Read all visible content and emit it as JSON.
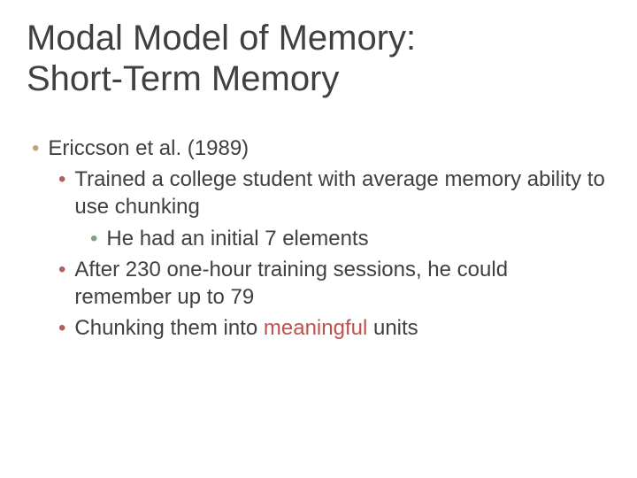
{
  "slide": {
    "background_color": "#ffffff",
    "title": {
      "line1": "Modal Model of Memory:",
      "line2": "Short-Term Memory",
      "color": "#404040",
      "fontsize": 40
    },
    "body": {
      "fontsize": 24,
      "text_color": "#404040",
      "highlight_color": "#c0504d",
      "bullet_colors": {
        "level1": "#b9a87a",
        "level2": "#b06060",
        "level3": "#7fa285"
      },
      "items": {
        "l1_a": "Ericcson et al. (1989)",
        "l2_a": "Trained a college student with average memory ability to use chunking",
        "l3_a": "He had an initial 7 elements",
        "l2_b": "After 230 one-hour training sessions, he could remember up to 79",
        "l2_c_pre": "Chunking them into ",
        "l2_c_hi": "meaningful",
        "l2_c_post": " units"
      }
    }
  }
}
